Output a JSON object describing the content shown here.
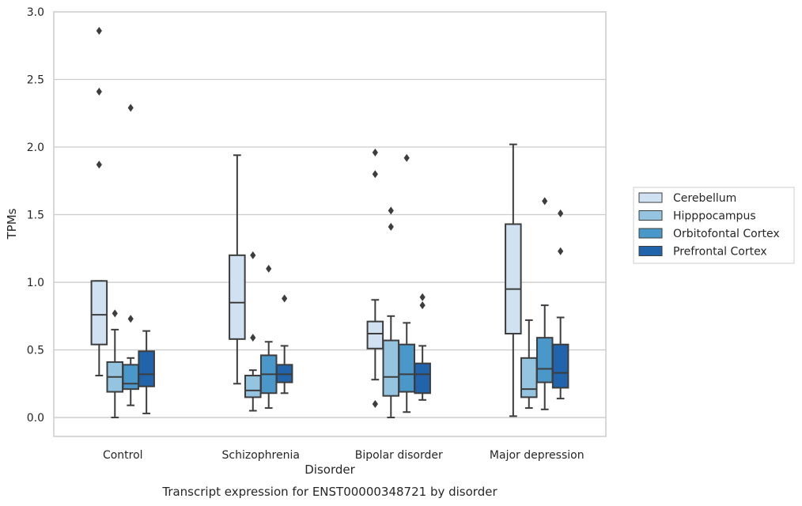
{
  "chart_data": {
    "type": "box",
    "title": "",
    "xlabel": "Disorder",
    "ylabel": "TPMs",
    "caption": "Transcript expression for ENST00000348721 by disorder",
    "ylim": [
      -0.14,
      3.0
    ],
    "yticks": [
      "0.0",
      "0.5",
      "1.0",
      "1.5",
      "2.0",
      "2.5",
      "3.0"
    ],
    "grid": "horizontal",
    "legend_position": "right",
    "categories": [
      "Control",
      "Schizophrenia",
      "Bipolar disorder",
      "Major depression"
    ],
    "series": [
      {
        "name": "Cerebellum",
        "color": "#d0e1f2",
        "boxes": [
          {
            "whislo": 0.31,
            "q1": 0.54,
            "med": 0.76,
            "q3": 1.01,
            "whishi": 1.01,
            "fliers": [
              1.87,
              2.41,
              2.86
            ]
          },
          {
            "whislo": 0.25,
            "q1": 0.58,
            "med": 0.85,
            "q3": 1.2,
            "whishi": 1.94,
            "fliers": []
          },
          {
            "whislo": 0.28,
            "q1": 0.51,
            "med": 0.62,
            "q3": 0.71,
            "whishi": 0.87,
            "fliers": [
              0.1,
              1.8,
              1.96
            ]
          },
          {
            "whislo": 0.01,
            "q1": 0.62,
            "med": 0.95,
            "q3": 1.43,
            "whishi": 2.02,
            "fliers": []
          }
        ]
      },
      {
        "name": "Hipppocampus",
        "color": "#94c4df",
        "boxes": [
          {
            "whislo": 0.0,
            "q1": 0.19,
            "med": 0.3,
            "q3": 0.41,
            "whishi": 0.65,
            "fliers": [
              0.77
            ]
          },
          {
            "whislo": 0.05,
            "q1": 0.15,
            "med": 0.2,
            "q3": 0.31,
            "whishi": 0.35,
            "fliers": [
              0.59,
              1.2
            ]
          },
          {
            "whislo": 0.0,
            "q1": 0.16,
            "med": 0.3,
            "q3": 0.57,
            "whishi": 0.75,
            "fliers": [
              1.41,
              1.53
            ]
          },
          {
            "whislo": 0.07,
            "q1": 0.15,
            "med": 0.21,
            "q3": 0.44,
            "whishi": 0.72,
            "fliers": []
          }
        ]
      },
      {
        "name": "Orbitofontal Cortex",
        "color": "#4a98c9",
        "boxes": [
          {
            "whislo": 0.09,
            "q1": 0.21,
            "med": 0.25,
            "q3": 0.39,
            "whishi": 0.44,
            "fliers": [
              0.73,
              2.29
            ]
          },
          {
            "whislo": 0.07,
            "q1": 0.18,
            "med": 0.32,
            "q3": 0.46,
            "whishi": 0.56,
            "fliers": [
              1.1
            ]
          },
          {
            "whislo": 0.04,
            "q1": 0.19,
            "med": 0.32,
            "q3": 0.54,
            "whishi": 0.7,
            "fliers": [
              1.92
            ]
          },
          {
            "whislo": 0.06,
            "q1": 0.26,
            "med": 0.36,
            "q3": 0.59,
            "whishi": 0.83,
            "fliers": [
              1.6
            ]
          }
        ]
      },
      {
        "name": "Prefrontal Cortex",
        "color": "#2164ab",
        "boxes": [
          {
            "whislo": 0.03,
            "q1": 0.23,
            "med": 0.32,
            "q3": 0.49,
            "whishi": 0.64,
            "fliers": []
          },
          {
            "whislo": 0.18,
            "q1": 0.26,
            "med": 0.32,
            "q3": 0.39,
            "whishi": 0.53,
            "fliers": [
              0.88
            ]
          },
          {
            "whislo": 0.13,
            "q1": 0.18,
            "med": 0.32,
            "q3": 0.4,
            "whishi": 0.53,
            "fliers": [
              0.83,
              0.89
            ]
          },
          {
            "whislo": 0.14,
            "q1": 0.22,
            "med": 0.33,
            "q3": 0.54,
            "whishi": 0.74,
            "fliers": [
              1.23,
              1.51
            ]
          }
        ]
      }
    ]
  },
  "colors": {
    "grid": "#cccccc",
    "frame": "#cccccc",
    "box_line": "#3d3d3d",
    "text": "#262626"
  }
}
